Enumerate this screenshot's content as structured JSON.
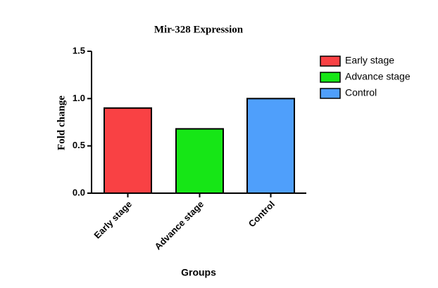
{
  "chart_data": {
    "type": "bar",
    "title": "Mir-328 Expression",
    "x_label": "Groups",
    "y_label": "Fold change",
    "categories": [
      "Early stage",
      "Advance stage",
      "Control"
    ],
    "values": [
      0.9,
      0.68,
      1.0
    ],
    "colors": [
      "#f94144",
      "#16e616",
      "#4f9ffb"
    ],
    "ylim": [
      0,
      1.5
    ],
    "yticks": [
      {
        "value": 0,
        "label": "0.0"
      },
      0.5,
      {
        "value": 1,
        "label": "1.0"
      },
      1.5
    ],
    "legend": "top-right"
  }
}
